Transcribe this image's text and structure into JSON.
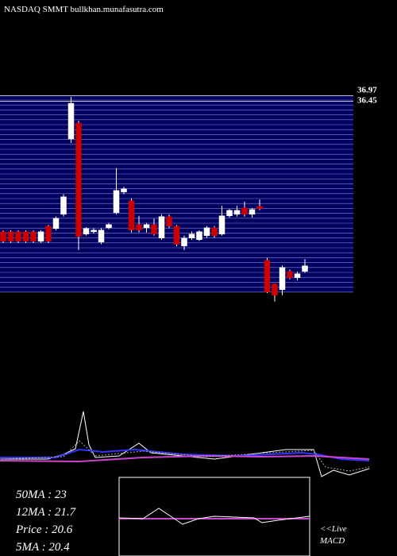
{
  "chart_data": {
    "type": "candlestick",
    "title": "NASDAQ SMMT bullkhan.munafasutra.com",
    "open": [
      24.17,
      24.17,
      24.17,
      24.17,
      24.17,
      23.27,
      24.69,
      24.47,
      25.81,
      32.9,
      34.39,
      23.95,
      24.17,
      23.2,
      24.54,
      25.96,
      27.9,
      27.08,
      24.84,
      24.54,
      24.84,
      23.57,
      25.59,
      24.69,
      22.83,
      23.57,
      23.42,
      23.8,
      24.54,
      23.95,
      25.66,
      25.81,
      26.41,
      25.81,
      26.56,
      21.48,
      19.24,
      18.72,
      20.44,
      19.84,
      20.44
    ],
    "high": [
      24.3,
      24.3,
      24.3,
      24.3,
      24.3,
      24.3,
      24.8,
      25.6,
      27.7,
      36.85,
      34.6,
      24.6,
      24.5,
      24.5,
      25.0,
      30.14,
      28.4,
      27.3,
      25.66,
      25.0,
      25.4,
      25.8,
      25.8,
      24.8,
      23.8,
      24.2,
      24.3,
      24.7,
      24.7,
      26.6,
      26.3,
      26.6,
      27.0,
      26.4,
      27.2,
      21.7,
      19.3,
      21.0,
      20.6,
      20.4,
      21.6
    ],
    "low": [
      23.1,
      23.1,
      23.1,
      23.1,
      23.1,
      23.1,
      23.1,
      24.3,
      25.6,
      32.52,
      22.45,
      23.8,
      24.0,
      23.0,
      24.4,
      25.8,
      27.7,
      24.1,
      24.1,
      24.1,
      23.8,
      23.4,
      24.5,
      22.8,
      22.45,
      23.4,
      23.3,
      23.6,
      23.6,
      23.8,
      25.5,
      25.6,
      25.6,
      25.5,
      26.2,
      18.4,
      17.6,
      18.2,
      19.7,
      19.6,
      20.3
    ],
    "close": [
      23.27,
      23.27,
      23.27,
      23.27,
      23.27,
      24.17,
      23.27,
      25.44,
      27.45,
      36.25,
      23.72,
      24.47,
      24.32,
      24.32,
      24.84,
      28.05,
      28.2,
      24.32,
      24.32,
      24.84,
      23.95,
      25.59,
      24.69,
      22.98,
      23.57,
      23.95,
      24.17,
      24.54,
      23.8,
      25.66,
      26.18,
      26.18,
      25.81,
      26.26,
      26.33,
      18.5,
      18.2,
      20.81,
      19.84,
      20.21,
      20.96
    ],
    "ylim": [
      17.5,
      37
    ],
    "yticks": [
      36.97,
      36.45
    ],
    "up_color": "#ffffff",
    "down_color": "#cc0000",
    "indicators": [
      "50MA : 23",
      "12MA : 21.7",
      "Price  : 20.6",
      "5MA : 20.4"
    ],
    "live": "<<Live",
    "macd": "MACD"
  }
}
